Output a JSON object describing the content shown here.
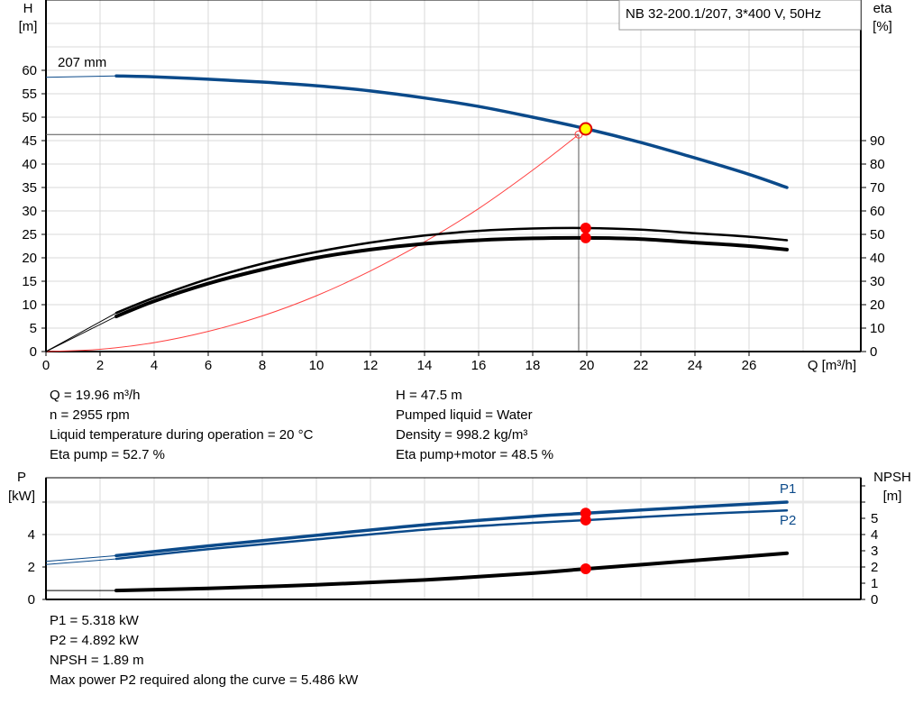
{
  "chart_data": [
    {
      "type": "line",
      "title": "NB 32-200.1/207, 3*400 V, 50Hz",
      "xlabel": "Q [m³/h]",
      "ylabel_left": [
        "H",
        "[m]"
      ],
      "ylabel_right": [
        "eta",
        "[%]"
      ],
      "xlim": [
        0,
        30.1
      ],
      "ylim_left": [
        0,
        75
      ],
      "ylim_right": [
        0,
        150
      ],
      "x_ticks": [
        0,
        2,
        4,
        6,
        8,
        10,
        12,
        14,
        16,
        18,
        20,
        22,
        24,
        26
      ],
      "y_ticks_left": [
        0,
        5,
        10,
        15,
        20,
        25,
        30,
        35,
        40,
        45,
        50,
        55,
        60
      ],
      "y_ticks_right": [
        0,
        10,
        20,
        30,
        40,
        50,
        60,
        70,
        80,
        90
      ],
      "grid": true,
      "annotations": [
        {
          "text": "207 mm",
          "series": "H"
        }
      ],
      "series": [
        {
          "name": "H",
          "axis": "left",
          "color": "#0b4a8a",
          "x": [
            0,
            2.6,
            4,
            6,
            8,
            10,
            12,
            14,
            16,
            18,
            20,
            22,
            24,
            26,
            27.4
          ],
          "y": [
            58.5,
            58.8,
            58.6,
            58.1,
            57.5,
            56.7,
            55.6,
            54.1,
            52.3,
            50.0,
            47.5,
            44.6,
            41.3,
            37.8,
            35.0
          ]
        },
        {
          "name": "Eta pump",
          "axis": "right",
          "color": "#000000",
          "x": [
            0,
            2.6,
            4,
            6,
            8,
            10,
            12,
            14,
            16,
            18,
            20,
            22,
            24,
            26,
            27.4
          ],
          "y": [
            0,
            16.5,
            23,
            31,
            37.5,
            42.5,
            46.5,
            49.5,
            51.5,
            52.5,
            52.7,
            52.0,
            50.5,
            49.0,
            47.5
          ]
        },
        {
          "name": "Eta pump+motor",
          "axis": "right",
          "color": "#000000",
          "x": [
            0,
            2.6,
            4,
            6,
            8,
            10,
            12,
            14,
            16,
            18,
            20,
            22,
            24,
            26,
            27.4
          ],
          "y": [
            0,
            15,
            21.5,
            29,
            35,
            40,
            43.5,
            46,
            47.5,
            48.3,
            48.5,
            48.0,
            46.5,
            45.0,
            43.5
          ]
        },
        {
          "name": "System curve",
          "axis": "left",
          "color": "#ff4040",
          "x": [
            0,
            2,
            4,
            6,
            8,
            10,
            12,
            14,
            16,
            18,
            19.7
          ],
          "y": [
            0,
            0.48,
            1.9,
            4.3,
            7.6,
            11.9,
            17.2,
            23.4,
            30.5,
            38.7,
            46.3
          ]
        }
      ],
      "duty_point": {
        "Q": 19.96,
        "H": 47.5,
        "eta_pump": 52.7,
        "eta_pump_motor": 48.5
      },
      "requested_point": {
        "Q": 19.7,
        "H": 46.3
      }
    },
    {
      "type": "line",
      "ylabel_left": [
        "P",
        "[kW]"
      ],
      "ylabel_right": [
        "NPSH",
        "[m]"
      ],
      "xlim": [
        0,
        30.1
      ],
      "ylim_left": [
        0,
        7.5
      ],
      "ylim_right": [
        0,
        7.5
      ],
      "y_ticks_left": [
        0,
        2,
        4
      ],
      "y_ticks_right": [
        0,
        1,
        2,
        3,
        4,
        5
      ],
      "grid": true,
      "series": [
        {
          "name": "P1",
          "axis": "left",
          "color": "#0b4a8a",
          "x": [
            0,
            2.6,
            6,
            10,
            14,
            18,
            20,
            24,
            27.4
          ],
          "y": [
            2.35,
            2.7,
            3.3,
            3.95,
            4.6,
            5.12,
            5.32,
            5.7,
            6.0
          ]
        },
        {
          "name": "P2",
          "axis": "left",
          "color": "#0b4a8a",
          "x": [
            0,
            2.6,
            6,
            10,
            14,
            18,
            20,
            24,
            27.4
          ],
          "y": [
            2.15,
            2.5,
            3.1,
            3.7,
            4.3,
            4.72,
            4.892,
            5.25,
            5.486
          ]
        },
        {
          "name": "NPSH",
          "axis": "right",
          "color": "#000000",
          "x": [
            0,
            2.6,
            6,
            10,
            14,
            18,
            20,
            24,
            27.4
          ],
          "y": [
            0.55,
            0.55,
            0.68,
            0.9,
            1.2,
            1.62,
            1.89,
            2.4,
            2.85
          ]
        }
      ],
      "duty_point": {
        "Q": 19.96,
        "P1": 5.318,
        "P2": 4.892,
        "NPSH": 1.89
      }
    }
  ],
  "info_top_left": [
    "Q = 19.96 m³/h",
    "n = 2955 rpm",
    "Liquid temperature during operation = 20 °C",
    "Eta pump = 52.7 %"
  ],
  "info_top_right": [
    "H = 47.5 m",
    "Pumped liquid = Water",
    "Density = 998.2 kg/m³",
    "Eta pump+motor = 48.5 %"
  ],
  "info_bottom": [
    "P1 = 5.318 kW",
    "P2 = 4.892 kW",
    "NPSH = 1.89 m",
    "Max power P2 required along the curve = 5.486 kW"
  ]
}
